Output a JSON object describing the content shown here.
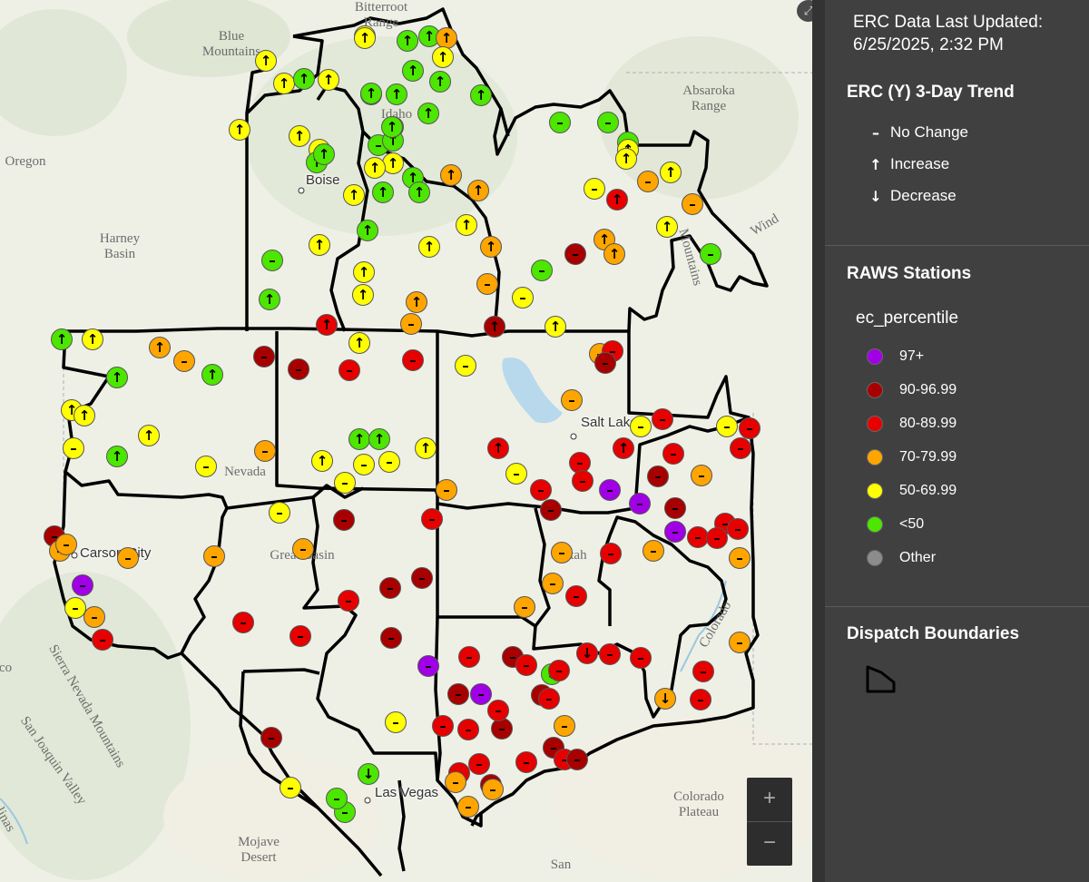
{
  "legend": {
    "last_updated_label": "ERC Data Last Updated:",
    "last_updated_value": "6/25/2025, 2:32 PM",
    "trend_title": "ERC (Y) 3-Day Trend",
    "trend_items": [
      {
        "symbol": "–",
        "label": "No Change"
      },
      {
        "symbol": "↑",
        "label": "Increase"
      },
      {
        "symbol": "↓",
        "label": "Decrease"
      }
    ],
    "raws_title": "RAWS Stations",
    "raws_field": "ec_percentile",
    "classes": [
      {
        "label": "97+",
        "color": "#a100e6"
      },
      {
        "label": "90-96.99",
        "color": "#a80000"
      },
      {
        "label": "80-89.99",
        "color": "#e60000"
      },
      {
        "label": "70-79.99",
        "color": "#ffa500"
      },
      {
        "label": "50-69.99",
        "color": "#ffff00"
      },
      {
        "label": "<50",
        "color": "#4ce600"
      },
      {
        "label": "Other",
        "color": "#8c8c8c"
      }
    ],
    "dispatch_title": "Dispatch Boundaries"
  },
  "controls": {
    "zoom_in": "+",
    "zoom_out": "−",
    "expand": "⤢"
  },
  "places": [
    {
      "text": "Bitterroot\nRange"
    },
    {
      "text": "Blue\nMountains"
    },
    {
      "text": "Oregon"
    },
    {
      "text": "Harney\nBasin"
    },
    {
      "text": "Idaho"
    },
    {
      "text": "Absaroka\nRange"
    },
    {
      "text": "Wind"
    },
    {
      "text": "Mountains"
    },
    {
      "text": "Nevada"
    },
    {
      "text": "Great Basin"
    },
    {
      "text": "Utah"
    },
    {
      "text": "Colorado"
    },
    {
      "text": "Colorado\nPlateau"
    },
    {
      "text": "Mojave\nDesert"
    },
    {
      "text": "Sierra Nevada Mountains"
    },
    {
      "text": "San Joaquin Valley"
    },
    {
      "text": "co"
    },
    {
      "text": "San"
    },
    {
      "text": "linas"
    }
  ],
  "cities": [
    {
      "text": "Boise"
    },
    {
      "text": "Salt Lake"
    },
    {
      "text": "Carson City"
    },
    {
      "text": "Las Vegas"
    }
  ],
  "stations": [
    {
      "c": "yellow",
      "t": "up"
    },
    {
      "c": "green",
      "t": "up"
    },
    {
      "c": "green",
      "t": "up"
    },
    {
      "c": "orange",
      "t": "up"
    },
    {
      "c": "yellow",
      "t": "up"
    },
    {
      "c": "yellow",
      "t": "up"
    },
    {
      "c": "green",
      "t": "up"
    },
    {
      "c": "yellow",
      "t": "up"
    },
    {
      "c": "yellow",
      "t": "up"
    },
    {
      "c": "yellow",
      "t": "up"
    },
    {
      "c": "green",
      "t": "up"
    },
    {
      "c": "green",
      "t": "up"
    },
    {
      "c": "green",
      "t": "up"
    },
    {
      "c": "green",
      "t": "up"
    },
    {
      "c": "green",
      "t": "up"
    },
    {
      "c": "green",
      "t": "up"
    },
    {
      "c": "green",
      "t": "up"
    },
    {
      "c": "green",
      "t": "none"
    },
    {
      "c": "green",
      "t": "up"
    },
    {
      "c": "yellow",
      "t": "up"
    },
    {
      "c": "yellow",
      "t": "up"
    },
    {
      "c": "yellow",
      "t": "up"
    },
    {
      "c": "green",
      "t": "up"
    },
    {
      "c": "green",
      "t": "up"
    },
    {
      "c": "green",
      "t": "up"
    },
    {
      "c": "green",
      "t": "up"
    },
    {
      "c": "yellow",
      "t": "up"
    },
    {
      "c": "yellow",
      "t": "up"
    },
    {
      "c": "yellow",
      "t": "up"
    },
    {
      "c": "green",
      "t": "up"
    },
    {
      "c": "green",
      "t": "up"
    },
    {
      "c": "green",
      "t": "up"
    },
    {
      "c": "orange",
      "t": "up"
    },
    {
      "c": "orange",
      "t": "up"
    },
    {
      "c": "green",
      "t": "none"
    },
    {
      "c": "green",
      "t": "none"
    },
    {
      "c": "green",
      "t": "none"
    },
    {
      "c": "yellow",
      "t": "up"
    },
    {
      "c": "yellow",
      "t": "up"
    },
    {
      "c": "yellow",
      "t": "up"
    },
    {
      "c": "yellow",
      "t": "none"
    },
    {
      "c": "orange",
      "t": "none"
    },
    {
      "c": "red",
      "t": "up"
    },
    {
      "c": "yellow",
      "t": "up"
    },
    {
      "c": "orange",
      "t": "none"
    },
    {
      "c": "orange",
      "t": "up"
    },
    {
      "c": "orange",
      "t": "up"
    },
    {
      "c": "darkred",
      "t": "none"
    },
    {
      "c": "orange",
      "t": "up"
    },
    {
      "c": "green",
      "t": "none"
    },
    {
      "c": "yellow",
      "t": "up"
    },
    {
      "c": "yellow",
      "t": "up"
    },
    {
      "c": "green",
      "t": "up"
    },
    {
      "c": "yellow",
      "t": "up"
    },
    {
      "c": "yellow",
      "t": "up"
    },
    {
      "c": "yellow",
      "t": "up"
    },
    {
      "c": "orange",
      "t": "none"
    },
    {
      "c": "green",
      "t": "none"
    },
    {
      "c": "yellow",
      "t": "none"
    },
    {
      "c": "green",
      "t": "none"
    },
    {
      "c": "orange",
      "t": "up"
    },
    {
      "c": "green",
      "t": "up"
    },
    {
      "c": "green",
      "t": "up"
    },
    {
      "c": "yellow",
      "t": "up"
    },
    {
      "c": "orange",
      "t": "up"
    },
    {
      "c": "orange",
      "t": "none"
    },
    {
      "c": "red",
      "t": "up"
    },
    {
      "c": "yellow",
      "t": "up"
    },
    {
      "c": "orange",
      "t": "none"
    },
    {
      "c": "darkred",
      "t": "up"
    },
    {
      "c": "yellow",
      "t": "up"
    },
    {
      "c": "green",
      "t": "up"
    },
    {
      "c": "green",
      "t": "up"
    },
    {
      "c": "yellow",
      "t": "up"
    },
    {
      "c": "yellow",
      "t": "up"
    },
    {
      "c": "yellow",
      "t": "up"
    },
    {
      "c": "green",
      "t": "up"
    },
    {
      "c": "yellow",
      "t": "none"
    },
    {
      "c": "yellow",
      "t": "none"
    },
    {
      "c": "orange",
      "t": "none"
    },
    {
      "c": "darkred",
      "t": "none"
    },
    {
      "c": "darkred",
      "t": "none"
    },
    {
      "c": "red",
      "t": "none"
    },
    {
      "c": "red",
      "t": "none"
    },
    {
      "c": "orange",
      "t": "none"
    },
    {
      "c": "green",
      "t": "up"
    },
    {
      "c": "green",
      "t": "up"
    },
    {
      "c": "yellow",
      "t": "up"
    },
    {
      "c": "yellow",
      "t": "up"
    },
    {
      "c": "yellow",
      "t": "none"
    },
    {
      "c": "yellow",
      "t": "none"
    },
    {
      "c": "yellow",
      "t": "none"
    },
    {
      "c": "orange",
      "t": "none"
    },
    {
      "c": "yellow",
      "t": "none"
    },
    {
      "c": "red",
      "t": "up"
    },
    {
      "c": "yellow",
      "t": "none"
    },
    {
      "c": "red",
      "t": "none"
    },
    {
      "c": "red",
      "t": "none"
    },
    {
      "c": "red",
      "t": "up"
    },
    {
      "c": "darkred",
      "t": "none"
    },
    {
      "c": "red",
      "t": "none"
    },
    {
      "c": "darkred",
      "t": "none"
    },
    {
      "c": "yellow",
      "t": "none"
    },
    {
      "c": "orange",
      "t": "none"
    },
    {
      "c": "darkred",
      "t": "none"
    },
    {
      "c": "darkred",
      "t": "none"
    },
    {
      "c": "red",
      "t": "none"
    },
    {
      "c": "red",
      "t": "none"
    },
    {
      "c": "red",
      "t": "none"
    },
    {
      "c": "darkred",
      "t": "none"
    },
    {
      "c": "purple",
      "t": "none"
    },
    {
      "c": "red",
      "t": "none"
    },
    {
      "c": "darkred",
      "t": "none"
    },
    {
      "c": "purple",
      "t": "none"
    },
    {
      "c": "darkred",
      "t": "none"
    },
    {
      "c": "darkred",
      "t": "none"
    },
    {
      "c": "green",
      "t": "down"
    },
    {
      "c": "red",
      "t": "none"
    },
    {
      "c": "red",
      "t": "none"
    },
    {
      "c": "red",
      "t": "none"
    },
    {
      "c": "orange",
      "t": "none"
    },
    {
      "c": "orange",
      "t": "none"
    },
    {
      "c": "darkred",
      "t": "none"
    },
    {
      "c": "red",
      "t": "none"
    },
    {
      "c": "orange",
      "t": "none"
    },
    {
      "c": "yellow",
      "t": "none"
    },
    {
      "c": "red",
      "t": "none"
    },
    {
      "c": "yellow",
      "t": "none"
    },
    {
      "c": "red",
      "t": "none"
    },
    {
      "c": "red",
      "t": "none"
    },
    {
      "c": "orange",
      "t": "none"
    },
    {
      "c": "red",
      "t": "none"
    },
    {
      "c": "darkred",
      "t": "none"
    },
    {
      "c": "darkred",
      "t": "none"
    },
    {
      "c": "purple",
      "t": "none"
    },
    {
      "c": "purple",
      "t": "none"
    },
    {
      "c": "purple",
      "t": "none"
    },
    {
      "c": "red",
      "t": "none"
    },
    {
      "c": "red",
      "t": "none"
    },
    {
      "c": "red",
      "t": "none"
    },
    {
      "c": "orange",
      "t": "none"
    },
    {
      "c": "red",
      "t": "none"
    },
    {
      "c": "orange",
      "t": "none"
    },
    {
      "c": "red",
      "t": "none"
    },
    {
      "c": "orange",
      "t": "none"
    },
    {
      "c": "red",
      "t": "none"
    },
    {
      "c": "red",
      "t": "none"
    },
    {
      "c": "orange",
      "t": "none"
    },
    {
      "c": "red",
      "t": "none"
    },
    {
      "c": "darkred",
      "t": "none"
    },
    {
      "c": "red",
      "t": "down"
    },
    {
      "c": "orange",
      "t": "down"
    },
    {
      "c": "red",
      "t": "none"
    },
    {
      "c": "red",
      "t": "none"
    },
    {
      "c": "orange",
      "t": "none"
    },
    {
      "c": "red",
      "t": "none"
    },
    {
      "c": "red",
      "t": "none"
    },
    {
      "c": "red",
      "t": "none"
    },
    {
      "c": "yellow",
      "t": "none"
    },
    {
      "c": "red",
      "t": "none"
    },
    {
      "c": "darkred",
      "t": "none"
    },
    {
      "c": "red",
      "t": "none"
    },
    {
      "c": "orange",
      "t": "none"
    },
    {
      "c": "orange",
      "t": "none"
    },
    {
      "c": "orange",
      "t": "none"
    },
    {
      "c": "red",
      "t": "none"
    },
    {
      "c": "darkred",
      "t": "none"
    },
    {
      "c": "red",
      "t": "none"
    },
    {
      "c": "darkred",
      "t": "none"
    },
    {
      "c": "red",
      "t": "none"
    },
    {
      "c": "darkred",
      "t": "none"
    },
    {
      "c": "red",
      "t": "none"
    },
    {
      "c": "purple",
      "t": "none"
    },
    {
      "c": "orange",
      "t": "none"
    },
    {
      "c": "orange",
      "t": "none"
    },
    {
      "c": "yellow",
      "t": "none"
    },
    {
      "c": "darkred",
      "t": "none"
    },
    {
      "c": "orange",
      "t": "none"
    },
    {
      "c": "orange",
      "t": "none"
    },
    {
      "c": "yellow",
      "t": "none"
    },
    {
      "c": "green",
      "t": "none"
    },
    {
      "c": "green",
      "t": "none"
    },
    {
      "c": "green",
      "t": "down"
    },
    {
      "c": "orange",
      "t": "none"
    },
    {
      "c": "orange",
      "t": "none"
    },
    {
      "c": "yellow",
      "t": "none"
    },
    {
      "c": "yellow",
      "t": "none"
    },
    {
      "c": "darkred",
      "t": "none"
    }
  ]
}
